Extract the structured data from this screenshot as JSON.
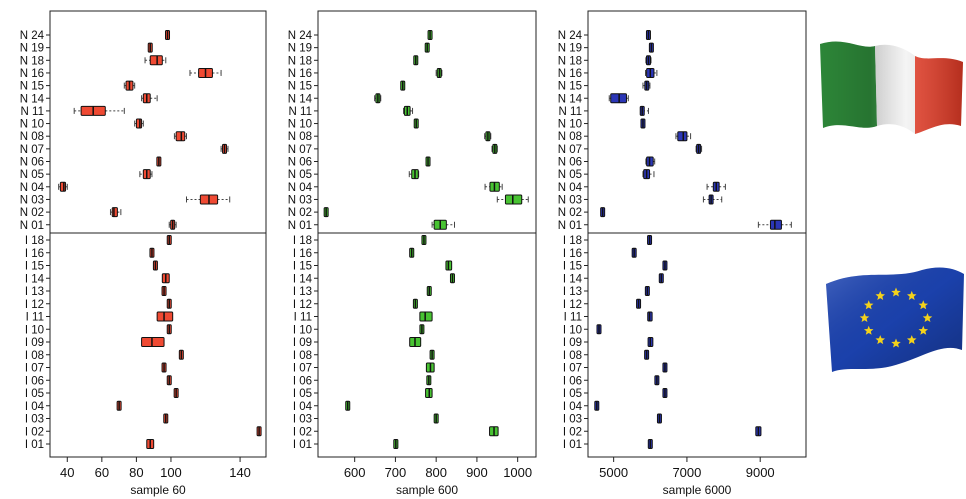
{
  "chart_data": [
    {
      "type": "boxplot",
      "xlabel": "sample 60",
      "xticks": [
        40,
        60,
        80,
        100,
        140
      ],
      "xlim": [
        30,
        155
      ],
      "color": "#ef4a33",
      "groups": {
        "N": [
          {
            "label": "N 24",
            "med": 98,
            "q1": 97,
            "q3": 99,
            "lo": 97,
            "hi": 99
          },
          {
            "label": "N 19",
            "med": 88,
            "q1": 88,
            "q3": 88,
            "lo": 88,
            "hi": 88
          },
          {
            "label": "N 18",
            "med": 92,
            "q1": 88,
            "q3": 95,
            "lo": 85,
            "hi": 97
          },
          {
            "label": "N 16",
            "med": 120,
            "q1": 116,
            "q3": 124,
            "lo": 111,
            "hi": 129
          },
          {
            "label": "N 15",
            "med": 76,
            "q1": 74,
            "q3": 78,
            "lo": 73,
            "hi": 79
          },
          {
            "label": "N 14",
            "med": 86,
            "q1": 84,
            "q3": 88,
            "lo": 83,
            "hi": 92
          },
          {
            "label": "N 11",
            "med": 55,
            "q1": 48,
            "q3": 62,
            "lo": 44,
            "hi": 73
          },
          {
            "label": "N 10",
            "med": 82,
            "q1": 80,
            "q3": 83,
            "lo": 79,
            "hi": 84
          },
          {
            "label": "N 08",
            "med": 106,
            "q1": 103,
            "q3": 108,
            "lo": 102,
            "hi": 109
          },
          {
            "label": "N 07",
            "med": 131,
            "q1": 130,
            "q3": 132,
            "lo": 129,
            "hi": 133
          },
          {
            "label": "N 06",
            "med": 93,
            "q1": 93,
            "q3": 93,
            "lo": 93,
            "hi": 93
          },
          {
            "label": "N 05",
            "med": 86,
            "q1": 84,
            "q3": 88,
            "lo": 82,
            "hi": 89
          },
          {
            "label": "N 04",
            "med": 38,
            "q1": 36,
            "q3": 39,
            "lo": 35,
            "hi": 40
          },
          {
            "label": "N 03",
            "med": 122,
            "q1": 117,
            "q3": 127,
            "lo": 109,
            "hi": 134
          },
          {
            "label": "N 02",
            "med": 67,
            "q1": 66,
            "q3": 69,
            "lo": 65,
            "hi": 71
          },
          {
            "label": "N 01",
            "med": 101,
            "q1": 100,
            "q3": 102,
            "lo": 99,
            "hi": 103
          }
        ],
        "I": [
          {
            "label": "I 18",
            "med": 99,
            "q1": 99,
            "q3": 99,
            "lo": 99,
            "hi": 99
          },
          {
            "label": "I 16",
            "med": 89,
            "q1": 89,
            "q3": 89,
            "lo": 89,
            "hi": 89
          },
          {
            "label": "I 15",
            "med": 91,
            "q1": 90,
            "q3": 92,
            "lo": 90,
            "hi": 92
          },
          {
            "label": "I 14",
            "med": 97,
            "q1": 95,
            "q3": 99,
            "lo": 95,
            "hi": 99
          },
          {
            "label": "I 13",
            "med": 96,
            "q1": 95,
            "q3": 97,
            "lo": 95,
            "hi": 97
          },
          {
            "label": "I 12",
            "med": 99,
            "q1": 99,
            "q3": 99,
            "lo": 99,
            "hi": 99
          },
          {
            "label": "I 11",
            "med": 96,
            "q1": 92,
            "q3": 101,
            "lo": 92,
            "hi": 101
          },
          {
            "label": "I 10",
            "med": 99,
            "q1": 98,
            "q3": 100,
            "lo": 98,
            "hi": 100
          },
          {
            "label": "I 09",
            "med": 89,
            "q1": 83,
            "q3": 96,
            "lo": 83,
            "hi": 96
          },
          {
            "label": "I 08",
            "med": 106,
            "q1": 106,
            "q3": 106,
            "lo": 106,
            "hi": 106
          },
          {
            "label": "I 07",
            "med": 96,
            "q1": 95,
            "q3": 97,
            "lo": 95,
            "hi": 97
          },
          {
            "label": "I 06",
            "med": 99,
            "q1": 99,
            "q3": 99,
            "lo": 99,
            "hi": 99
          },
          {
            "label": "I 05",
            "med": 103,
            "q1": 102,
            "q3": 104,
            "lo": 102,
            "hi": 104
          },
          {
            "label": "I 04",
            "med": 70,
            "q1": 69,
            "q3": 71,
            "lo": 69,
            "hi": 71
          },
          {
            "label": "I 03",
            "med": 97,
            "q1": 97,
            "q3": 97,
            "lo": 97,
            "hi": 97
          },
          {
            "label": "I 02",
            "med": 151,
            "q1": 150,
            "q3": 152,
            "lo": 150,
            "hi": 152
          },
          {
            "label": "I 01",
            "med": 88,
            "q1": 86,
            "q3": 90,
            "lo": 86,
            "hi": 90
          }
        ]
      }
    },
    {
      "type": "boxplot",
      "xlabel": "sample 600",
      "xticks": [
        600,
        700,
        800,
        900,
        1000
      ],
      "xlim": [
        510,
        1045
      ],
      "color": "#48c332",
      "groups": {
        "N": [
          {
            "label": "N 24",
            "med": 785,
            "q1": 783,
            "q3": 787,
            "lo": 783,
            "hi": 787
          },
          {
            "label": "N 19",
            "med": 778,
            "q1": 776,
            "q3": 780,
            "lo": 774,
            "hi": 782
          },
          {
            "label": "N 18",
            "med": 750,
            "q1": 749,
            "q3": 751,
            "lo": 748,
            "hi": 752
          },
          {
            "label": "N 16",
            "med": 808,
            "q1": 803,
            "q3": 812,
            "lo": 800,
            "hi": 814
          },
          {
            "label": "N 15",
            "med": 718,
            "q1": 716,
            "q3": 720,
            "lo": 715,
            "hi": 721
          },
          {
            "label": "N 14",
            "med": 657,
            "q1": 652,
            "q3": 662,
            "lo": 649,
            "hi": 664
          },
          {
            "label": "N 11",
            "med": 729,
            "q1": 722,
            "q3": 736,
            "lo": 720,
            "hi": 742
          },
          {
            "label": "N 10",
            "med": 751,
            "q1": 749,
            "q3": 753,
            "lo": 748,
            "hi": 754
          },
          {
            "label": "N 08",
            "med": 927,
            "q1": 922,
            "q3": 932,
            "lo": 919,
            "hi": 934
          },
          {
            "label": "N 07",
            "med": 944,
            "q1": 940,
            "q3": 948,
            "lo": 937,
            "hi": 950
          },
          {
            "label": "N 06",
            "med": 780,
            "q1": 779,
            "q3": 781,
            "lo": 779,
            "hi": 781
          },
          {
            "label": "N 05",
            "med": 748,
            "q1": 740,
            "q3": 756,
            "lo": 734,
            "hi": 757
          },
          {
            "label": "N 04",
            "med": 943,
            "q1": 932,
            "q3": 955,
            "lo": 920,
            "hi": 962
          },
          {
            "label": "N 03",
            "med": 988,
            "q1": 970,
            "q3": 1010,
            "lo": 950,
            "hi": 1026
          },
          {
            "label": "N 02",
            "med": 530,
            "q1": 528,
            "q3": 532,
            "lo": 527,
            "hi": 533
          },
          {
            "label": "N 01",
            "med": 810,
            "q1": 795,
            "q3": 825,
            "lo": 790,
            "hi": 845
          }
        ],
        "I": [
          {
            "label": "I 18",
            "med": 770,
            "q1": 770,
            "q3": 770,
            "lo": 770,
            "hi": 770
          },
          {
            "label": "I 16",
            "med": 740,
            "q1": 735,
            "q3": 745,
            "lo": 735,
            "hi": 745
          },
          {
            "label": "I 15",
            "med": 830,
            "q1": 824,
            "q3": 838,
            "lo": 824,
            "hi": 838
          },
          {
            "label": "I 14",
            "med": 840,
            "q1": 838,
            "q3": 842,
            "lo": 838,
            "hi": 842
          },
          {
            "label": "I 13",
            "med": 783,
            "q1": 782,
            "q3": 784,
            "lo": 782,
            "hi": 784
          },
          {
            "label": "I 12",
            "med": 749,
            "q1": 748,
            "q3": 750,
            "lo": 748,
            "hi": 750
          },
          {
            "label": "I 11",
            "med": 773,
            "q1": 760,
            "q3": 790,
            "lo": 760,
            "hi": 790
          },
          {
            "label": "I 10",
            "med": 765,
            "q1": 762,
            "q3": 768,
            "lo": 762,
            "hi": 768
          },
          {
            "label": "I 09",
            "med": 748,
            "q1": 735,
            "q3": 762,
            "lo": 735,
            "hi": 762
          },
          {
            "label": "I 08",
            "med": 790,
            "q1": 790,
            "q3": 790,
            "lo": 790,
            "hi": 790
          },
          {
            "label": "I 07",
            "med": 786,
            "q1": 776,
            "q3": 795,
            "lo": 776,
            "hi": 795
          },
          {
            "label": "I 06",
            "med": 782,
            "q1": 780,
            "q3": 784,
            "lo": 780,
            "hi": 784
          },
          {
            "label": "I 05",
            "med": 783,
            "q1": 774,
            "q3": 790,
            "lo": 774,
            "hi": 790
          },
          {
            "label": "I 04",
            "med": 583,
            "q1": 582,
            "q3": 584,
            "lo": 582,
            "hi": 584
          },
          {
            "label": "I 03",
            "med": 800,
            "q1": 800,
            "q3": 800,
            "lo": 800,
            "hi": 800
          },
          {
            "label": "I 02",
            "med": 942,
            "q1": 931,
            "q3": 952,
            "lo": 931,
            "hi": 952
          },
          {
            "label": "I 01",
            "med": 701,
            "q1": 696,
            "q3": 706,
            "lo": 696,
            "hi": 706
          }
        ]
      }
    },
    {
      "type": "boxplot",
      "xlabel": "sample 6000",
      "xticks": [
        5000,
        7000,
        9000
      ],
      "xlim": [
        4300,
        10250
      ],
      "color": "#2b36b6",
      "groups": {
        "N": [
          {
            "label": "N 24",
            "med": 5950,
            "q1": 5930,
            "q3": 5970,
            "lo": 5920,
            "hi": 5980
          },
          {
            "label": "N 19",
            "med": 6030,
            "q1": 6010,
            "q3": 6050,
            "lo": 6000,
            "hi": 6060
          },
          {
            "label": "N 18",
            "med": 5950,
            "q1": 5900,
            "q3": 6000,
            "lo": 5880,
            "hi": 6020
          },
          {
            "label": "N 16",
            "med": 6000,
            "q1": 5900,
            "q3": 6100,
            "lo": 5870,
            "hi": 6180
          },
          {
            "label": "N 15",
            "med": 5900,
            "q1": 5860,
            "q3": 5950,
            "lo": 5800,
            "hi": 5990
          },
          {
            "label": "N 14",
            "med": 5150,
            "q1": 4920,
            "q3": 5350,
            "lo": 4880,
            "hi": 5400
          },
          {
            "label": "N 11",
            "med": 5780,
            "q1": 5760,
            "q3": 5800,
            "lo": 5740,
            "hi": 5950
          },
          {
            "label": "N 10",
            "med": 5800,
            "q1": 5780,
            "q3": 5820,
            "lo": 5770,
            "hi": 5830
          },
          {
            "label": "N 08",
            "med": 6900,
            "q1": 6750,
            "q3": 7000,
            "lo": 6700,
            "hi": 7100
          },
          {
            "label": "N 07",
            "med": 7320,
            "q1": 7280,
            "q3": 7360,
            "lo": 7250,
            "hi": 7400
          },
          {
            "label": "N 06",
            "med": 5980,
            "q1": 5900,
            "q3": 6080,
            "lo": 5880,
            "hi": 6120
          },
          {
            "label": "N 05",
            "med": 5900,
            "q1": 5820,
            "q3": 5980,
            "lo": 5800,
            "hi": 6100
          },
          {
            "label": "N 04",
            "med": 7800,
            "q1": 7720,
            "q3": 7880,
            "lo": 7550,
            "hi": 8050
          },
          {
            "label": "N 03",
            "med": 7660,
            "q1": 7620,
            "q3": 7700,
            "lo": 7450,
            "hi": 7950
          },
          {
            "label": "N 02",
            "med": 4700,
            "q1": 4680,
            "q3": 4720,
            "lo": 4670,
            "hi": 4730
          },
          {
            "label": "N 01",
            "med": 9400,
            "q1": 9280,
            "q3": 9580,
            "lo": 8950,
            "hi": 9850
          }
        ],
        "I": [
          {
            "label": "I 18",
            "med": 5980,
            "q1": 5980,
            "q3": 5980,
            "lo": 5980,
            "hi": 5980
          },
          {
            "label": "I 16",
            "med": 5560,
            "q1": 5540,
            "q3": 5580,
            "lo": 5540,
            "hi": 5580
          },
          {
            "label": "I 15",
            "med": 6400,
            "q1": 6370,
            "q3": 6430,
            "lo": 6370,
            "hi": 6430
          },
          {
            "label": "I 14",
            "med": 6300,
            "q1": 6280,
            "q3": 6320,
            "lo": 6280,
            "hi": 6320
          },
          {
            "label": "I 13",
            "med": 5920,
            "q1": 5910,
            "q3": 5930,
            "lo": 5910,
            "hi": 5930
          },
          {
            "label": "I 12",
            "med": 5680,
            "q1": 5670,
            "q3": 5690,
            "lo": 5670,
            "hi": 5690
          },
          {
            "label": "I 11",
            "med": 5980,
            "q1": 5930,
            "q3": 6050,
            "lo": 5930,
            "hi": 6050
          },
          {
            "label": "I 10",
            "med": 4600,
            "q1": 4590,
            "q3": 4610,
            "lo": 4590,
            "hi": 4610
          },
          {
            "label": "I 09",
            "med": 6000,
            "q1": 5940,
            "q3": 6070,
            "lo": 5940,
            "hi": 6070
          },
          {
            "label": "I 08",
            "med": 5900,
            "q1": 5890,
            "q3": 5910,
            "lo": 5890,
            "hi": 5910
          },
          {
            "label": "I 07",
            "med": 6400,
            "q1": 6350,
            "q3": 6450,
            "lo": 6350,
            "hi": 6450
          },
          {
            "label": "I 06",
            "med": 6180,
            "q1": 6170,
            "q3": 6190,
            "lo": 6170,
            "hi": 6190
          },
          {
            "label": "I 05",
            "med": 6400,
            "q1": 6350,
            "q3": 6450,
            "lo": 6350,
            "hi": 6450
          },
          {
            "label": "I 04",
            "med": 4540,
            "q1": 4530,
            "q3": 4550,
            "lo": 4530,
            "hi": 4550
          },
          {
            "label": "I 03",
            "med": 6250,
            "q1": 6240,
            "q3": 6260,
            "lo": 6240,
            "hi": 6260
          },
          {
            "label": "I 02",
            "med": 8950,
            "q1": 8880,
            "q3": 9020,
            "lo": 8880,
            "hi": 9020
          },
          {
            "label": "I 01",
            "med": 6000,
            "q1": 5980,
            "q3": 6020,
            "lo": 5980,
            "hi": 6020
          }
        ]
      }
    }
  ],
  "flags": {
    "top": {
      "icon": "italy-flag-icon",
      "colors": [
        "#2a8c3a",
        "#f3f3f3",
        "#e03a26"
      ]
    },
    "bottom": {
      "icon": "eu-flag-icon",
      "colors": [
        "#1c44b4",
        "#f4d21b"
      ]
    }
  }
}
